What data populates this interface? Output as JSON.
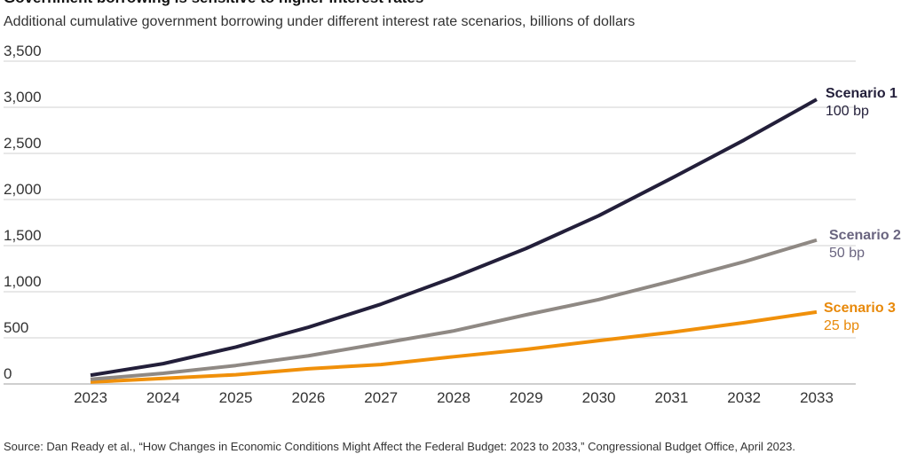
{
  "chart_data": {
    "type": "line",
    "title": "Government borrowing is sensitive to higher interest rates",
    "subtitle": "Additional cumulative government borrowing under different interest rate scenarios, billions of dollars",
    "xlabel": "",
    "ylabel": "",
    "x": [
      2023,
      2024,
      2025,
      2026,
      2027,
      2028,
      2029,
      2030,
      2031,
      2032,
      2033
    ],
    "x_tick_labels": [
      "2023",
      "2024",
      "2025",
      "2026",
      "2027",
      "2028",
      "2029",
      "2030",
      "2031",
      "2032",
      "2033"
    ],
    "ylim": [
      0,
      3500
    ],
    "y_ticks": [
      0,
      500,
      1000,
      1500,
      2000,
      2500,
      3000,
      3500
    ],
    "y_tick_labels": [
      "0",
      "500",
      "1,000",
      "1,500",
      "2,000",
      "2,500",
      "3,000",
      "3,500"
    ],
    "grid": "horizontal",
    "legend": "direct labels at line ends (right)",
    "series": [
      {
        "name": "Scenario 1",
        "label_sub": "100 bp",
        "color": "#231f3a",
        "label_color": "#231f3a",
        "values": [
          95,
          220,
          400,
          615,
          865,
          1155,
          1470,
          1825,
          2230,
          2645,
          3085
        ]
      },
      {
        "name": "Scenario 2",
        "label_sub": "50 bp",
        "color": "#8f8984",
        "label_color": "#6a6580",
        "values": [
          50,
          115,
          200,
          305,
          440,
          575,
          750,
          915,
          1115,
          1325,
          1560
        ]
      },
      {
        "name": "Scenario 3",
        "label_sub": "25 bp",
        "color": "#f0900a",
        "label_color": "#e8890a",
        "values": [
          20,
          60,
          100,
          165,
          210,
          295,
          375,
          470,
          560,
          665,
          780
        ]
      }
    ]
  },
  "source": "Source: Dan Ready et al., “How Changes in Economic Conditions Might Affect the Federal Budget: 2023 to 2033,” Congressional Budget Office, April 2023."
}
